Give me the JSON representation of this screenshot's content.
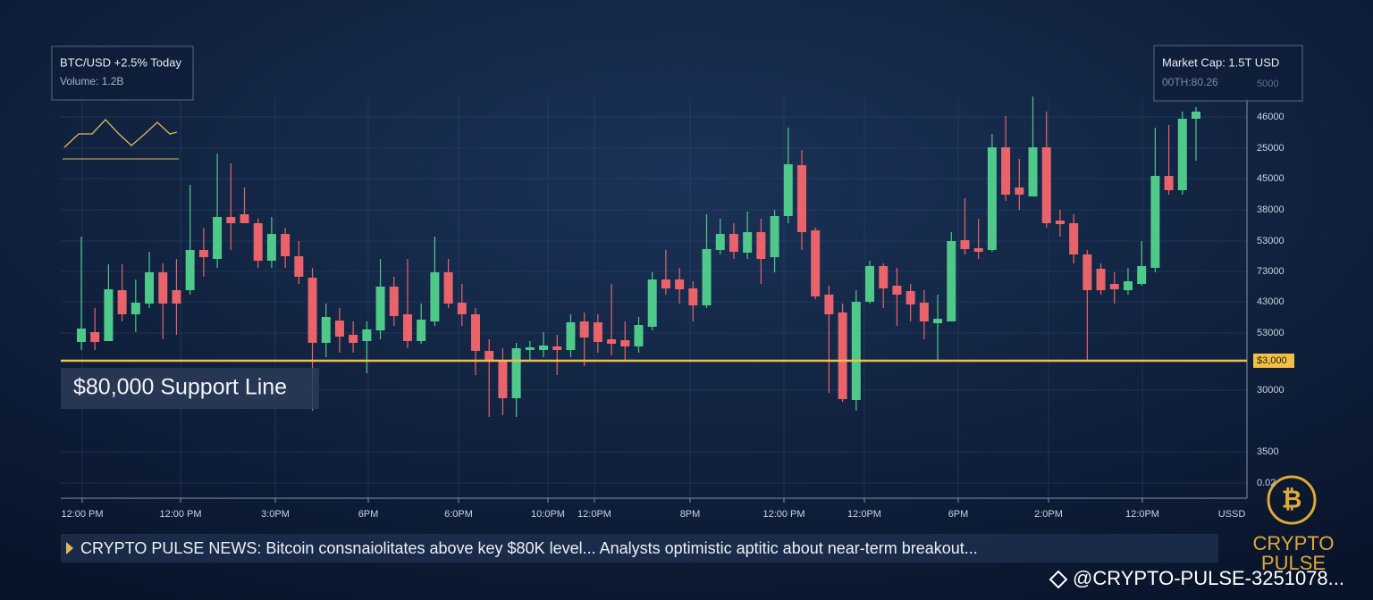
{
  "chart_data": {
    "type": "candlestick",
    "ticker_box": {
      "title": "BTC/USD +2.5% Today",
      "volume": "Volume: 1.2B"
    },
    "market_box": {
      "title": "Market Cap:  1.5T USD",
      "subtitle": "00TH:80.26"
    },
    "support": {
      "value": 80000,
      "label": "$80,000 Support Line",
      "axis_label": "$3,000",
      "color": "#f0c04a"
    },
    "y_axis_labels": [
      "5000",
      "46000",
      "25000",
      "45000",
      "38000",
      "53000",
      "73000",
      "43000",
      "53000",
      "30000",
      "3500",
      "0.02"
    ],
    "x_axis_labels": [
      "12:00 PM",
      "12:00 PM",
      "3:0PM",
      "6PM",
      "6:0PM",
      "10:0PM",
      "12:0PM",
      "8PM",
      "12:00 PM",
      "12:0PM",
      "6PM",
      "2:0PM",
      "12:0PM",
      "USSD"
    ],
    "ylim": [
      64600,
      110400
    ],
    "up_color": "#4fc98a",
    "down_color": "#e8636a",
    "open": [
      82100,
      83200,
      82200,
      87900,
      85200,
      86400,
      89900,
      87900,
      87900,
      92400,
      91400,
      96100,
      96400,
      95400,
      91200,
      94200,
      91700,
      89300,
      82000,
      84500,
      82900,
      82200,
      83400,
      88300,
      85200,
      82200,
      84400,
      89900,
      86500,
      85200,
      81100,
      80100,
      75800,
      81200,
      81200,
      81600,
      81200,
      84400,
      84300,
      82400,
      82300,
      81600,
      83800,
      89100,
      89100,
      88100,
      86200,
      92400,
      94200,
      92100,
      94400,
      91600,
      96200,
      101900,
      94600,
      87400,
      85400,
      75600,
      86600,
      90600,
      88400,
      87800,
      86500,
      84200,
      84400,
      93500,
      92600,
      92400,
      103900,
      99400,
      98400,
      103900,
      95700,
      95400,
      91900,
      90300,
      88600,
      87900,
      88600,
      90400,
      100700,
      99100,
      107100
    ],
    "high": [
      93900,
      85900,
      90800,
      90800,
      89100,
      92200,
      90900,
      91400,
      99700,
      94900,
      103200,
      102100,
      99400,
      95900,
      96100,
      94900,
      93400,
      90400,
      86400,
      85900,
      84400,
      84400,
      91400,
      89400,
      91400,
      86400,
      93900,
      91400,
      88600,
      85900,
      82400,
      81400,
      82000,
      82200,
      83200,
      82900,
      85200,
      85400,
      85200,
      88600,
      84400,
      84900,
      89900,
      92400,
      90400,
      88900,
      96400,
      95900,
      95400,
      96700,
      95900,
      96900,
      106100,
      103600,
      94900,
      88400,
      86400,
      87900,
      91200,
      90900,
      90400,
      88600,
      87900,
      87400,
      94400,
      98200,
      95900,
      105400,
      107400,
      102600,
      109600,
      107900,
      96900,
      96400,
      92400,
      90900,
      89900,
      90400,
      93400,
      106100,
      106400,
      107900,
      108400
    ],
    "low": [
      81200,
      81200,
      82200,
      84400,
      83200,
      85900,
      82400,
      82900,
      87400,
      89400,
      90400,
      92400,
      95400,
      90400,
      90400,
      90400,
      88600,
      74400,
      80400,
      80900,
      80900,
      78600,
      82400,
      83900,
      81400,
      81900,
      83900,
      85900,
      83900,
      78400,
      73700,
      73900,
      73700,
      79900,
      80400,
      78400,
      80400,
      79400,
      80900,
      80600,
      79900,
      80900,
      83400,
      87400,
      86400,
      84400,
      85900,
      91900,
      91400,
      91400,
      88600,
      89900,
      95400,
      92400,
      86900,
      76400,
      75400,
      74400,
      86400,
      85900,
      83900,
      84400,
      82400,
      79900,
      84400,
      91900,
      91400,
      92200,
      97900,
      96900,
      98400,
      94900,
      93900,
      90900,
      79900,
      87400,
      86400,
      87400,
      88400,
      89900,
      98600,
      98600,
      102400
    ],
    "close": [
      83600,
      82100,
      88000,
      85200,
      86500,
      89900,
      86400,
      86400,
      92400,
      91600,
      96100,
      95400,
      95400,
      91200,
      94200,
      91700,
      89400,
      82000,
      84900,
      82700,
      82000,
      83500,
      88300,
      85000,
      82200,
      84600,
      89900,
      86400,
      85200,
      81100,
      79900,
      75800,
      81400,
      81500,
      81700,
      81200,
      84300,
      82600,
      82100,
      81900,
      81600,
      84000,
      89100,
      88100,
      88000,
      86200,
      92500,
      94200,
      92200,
      94400,
      91400,
      96200,
      102000,
      94400,
      87200,
      85200,
      75700,
      86600,
      90600,
      88100,
      87400,
      86300,
      84400,
      84700,
      93400,
      92500,
      92200,
      103900,
      98600,
      98600,
      103900,
      95400,
      95300,
      91900,
      87900,
      87900,
      88000,
      88900,
      90600,
      100700,
      99100,
      107100,
      107900
    ]
  },
  "news": {
    "text": "CRYPTO PULSE NEWS: Bitcoin consnaiolitates above key $80K level... Analysts optimistic aptitic about near-term breakout..."
  },
  "brand": {
    "line1": "CRYPTO",
    "line2": "PULSE",
    "handle": "@CRYPTO-PULSE-3251078..."
  }
}
